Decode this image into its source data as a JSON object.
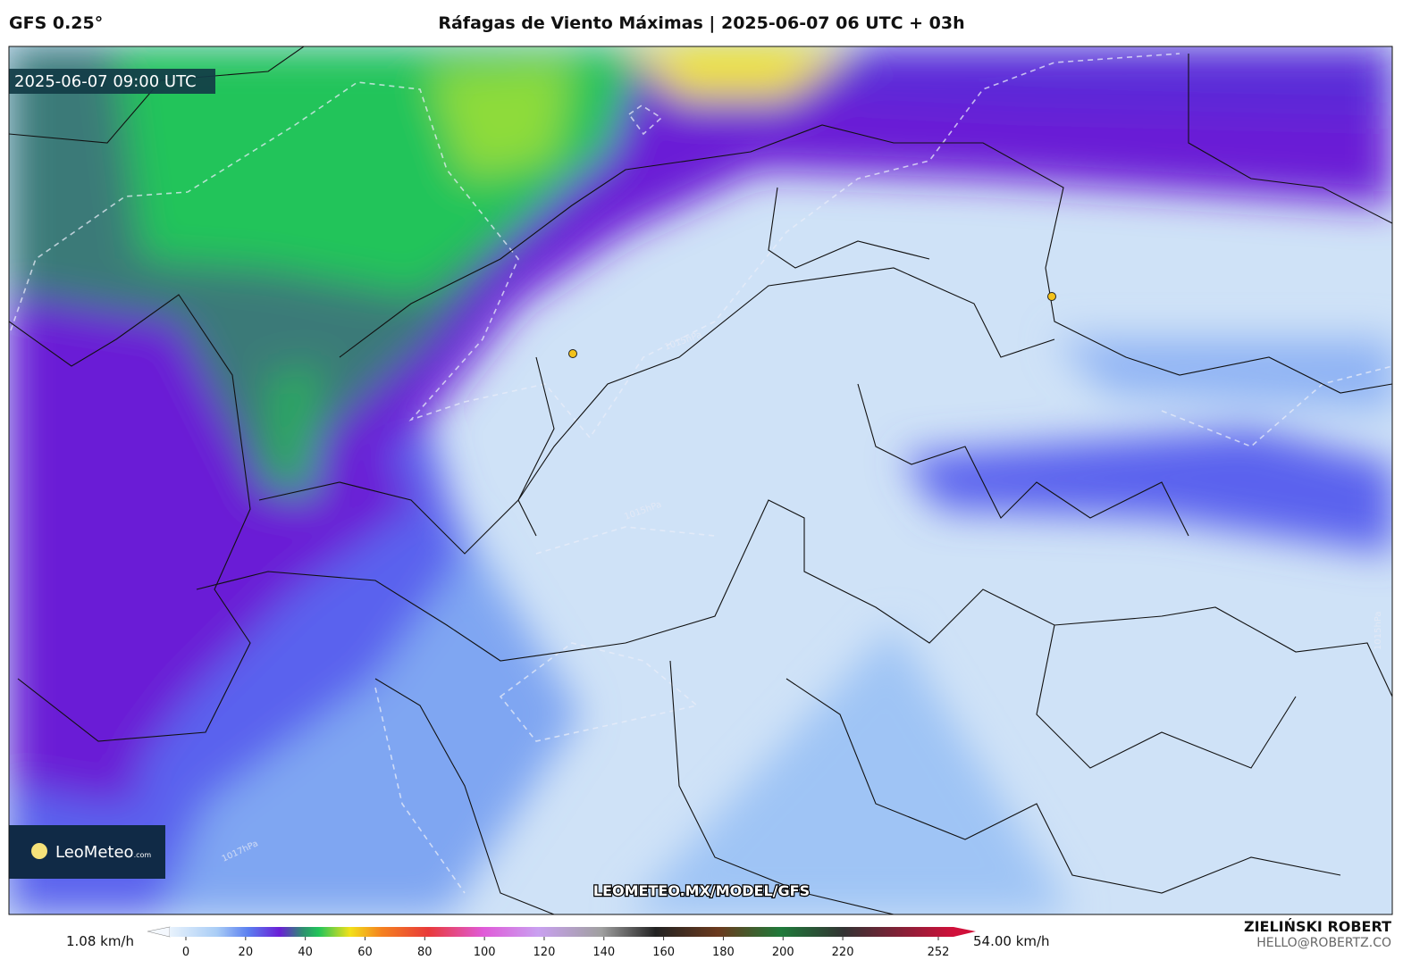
{
  "header": {
    "model": "GFS 0.25°",
    "title": "Ráfagas de Viento Máximas | 2025-06-07 06 UTC + 03h"
  },
  "map": {
    "valid_time": "2025-06-07 09:00 UTC",
    "watermark": "LEOMETEO.MX/MODEL/GFS",
    "logo": {
      "name": "LeoMeteo",
      "suffix": ".com"
    },
    "isobar_labels": [
      "1015hPa",
      "1015hPa",
      "1017hPa",
      "1015hPa"
    ]
  },
  "colorbar": {
    "min_label": "1.08 km/h",
    "max_label": "54.00 km/h",
    "ticks": [
      0,
      20,
      40,
      60,
      80,
      100,
      120,
      140,
      160,
      180,
      200,
      220,
      252
    ]
  },
  "credits": {
    "author": "ZIELIŃSKI ROBERT",
    "contact": "HELLO@ROBERTZ.CO"
  }
}
